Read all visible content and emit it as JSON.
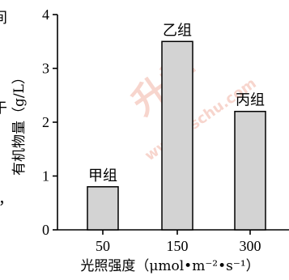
{
  "page": {
    "left_edge_fragments": [
      "间",
      "于",
      "，"
    ]
  },
  "chart_data": {
    "type": "bar",
    "categories": [
      "50",
      "150",
      "300"
    ],
    "values": [
      0.8,
      3.5,
      2.2
    ],
    "bar_labels": [
      "甲组",
      "乙组",
      "丙组"
    ],
    "title": "",
    "xlabel": "光照强度（μmol•m⁻²•s⁻¹）",
    "ylabel": "有机物量（g/L）",
    "ylim": [
      0,
      4
    ],
    "yticks": [
      "0",
      "1",
      "2",
      "3",
      "4"
    ],
    "grid": false,
    "bar_color": "#d3d3d3",
    "bar_edge_color": "#000000"
  },
  "watermark": {
    "text": "升学",
    "url": "www.xschu.com",
    "color": "#e8492f"
  }
}
